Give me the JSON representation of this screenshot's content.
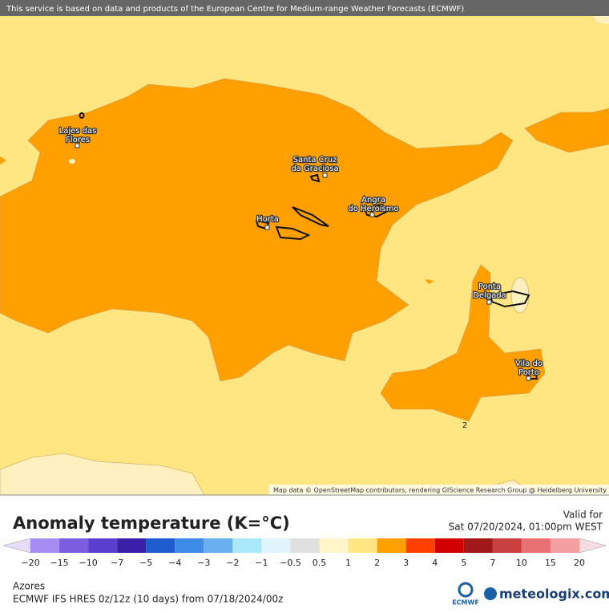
{
  "header": {
    "banner": "This service is based on data and products of the European Centre for Medium-range Weather Forecasts (ECMWF)"
  },
  "map": {
    "places": [
      {
        "lines": [
          "Lajes das",
          "Flores"
        ]
      },
      {
        "lines": [
          "Santa Cruz",
          "da Graciosa"
        ]
      },
      {
        "lines": [
          "Angra",
          "do Heroísmo"
        ]
      },
      {
        "lines": [
          "Horta"
        ]
      },
      {
        "lines": [
          "Ponta",
          "Delgada"
        ]
      },
      {
        "lines": [
          "Vila do",
          "Porto"
        ]
      }
    ],
    "contour_label": "2",
    "attribution": "Map data © OpenStreetMap contributors, rendering GIScience Research Group @ Heidelberg University"
  },
  "legend": {
    "title": "Anomaly temperature (K=°C)",
    "valid_label": "Valid for",
    "valid_time": "Sat 07/20/2024, 01:00pm WEST",
    "ticks": [
      "−20",
      "−15",
      "−10",
      "−7",
      "−5",
      "−4",
      "−3",
      "−2",
      "−1",
      "−0.5",
      "0.5",
      "1",
      "2",
      "3",
      "4",
      "5",
      "7",
      "10",
      "15",
      "20"
    ],
    "colors": [
      "#a58cf3",
      "#7b5ee0",
      "#5a3fcf",
      "#3a1fa8",
      "#1e5ccf",
      "#3c8ce8",
      "#6ab0f0",
      "#a8e8f8",
      "#e0f6fc",
      "#e0e0e0",
      "#fff6c8",
      "#ffe680",
      "#ffa000",
      "#ff4000",
      "#d20000",
      "#a01818",
      "#c84040",
      "#e87070",
      "#f4a0a0"
    ],
    "low_color": "#e4dcf8",
    "high_color": "#f8dce4"
  },
  "footer": {
    "region": "Azores",
    "model": "ECMWF IFS HRES 0z/12z (10 days) from  07/18/2024/00z",
    "ecmwf_logo": "ECMWF",
    "brand": "meteologix.com"
  }
}
